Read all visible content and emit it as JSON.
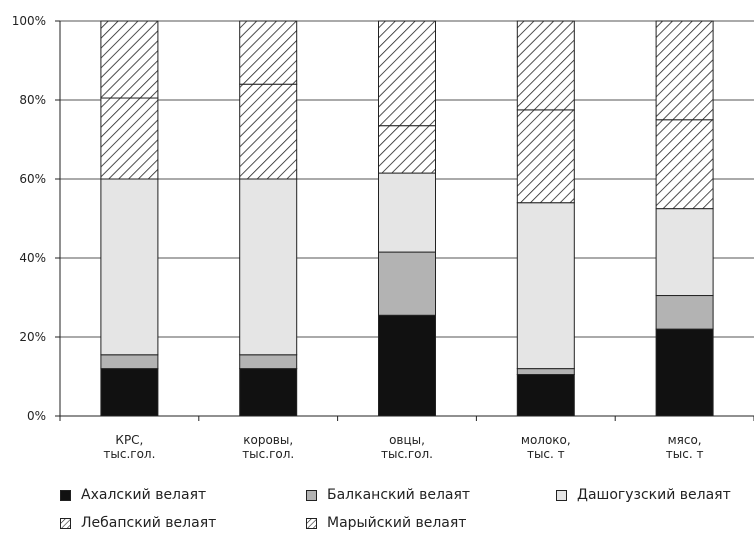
{
  "chart_data": {
    "type": "bar",
    "stacked": true,
    "normalized": true,
    "categories": [
      [
        "КРС,",
        "тыс.гол."
      ],
      [
        "коровы,",
        "тыс.гол."
      ],
      [
        "овцы,",
        "тыс.гол."
      ],
      [
        "молоко,",
        "тыс. т"
      ],
      [
        "мясо,",
        "тыс. т"
      ]
    ],
    "series": [
      {
        "name": "Ахалский велаят",
        "pattern": "solid",
        "color": "#111111",
        "values": [
          12,
          12,
          25.5,
          10.5,
          22
        ]
      },
      {
        "name": "Балканский велаят",
        "pattern": "solid",
        "color": "#b3b3b3",
        "values": [
          3.5,
          3.5,
          16,
          1.5,
          8.5
        ]
      },
      {
        "name": "Дашогузский велаят",
        "pattern": "solid",
        "color": "#e5e5e5",
        "values": [
          44.5,
          44.5,
          20,
          42,
          22
        ]
      },
      {
        "name": "Лебапский велаят",
        "pattern": "hatch",
        "color": "#222222",
        "values": [
          20.5,
          24,
          12,
          23.5,
          22.5
        ]
      },
      {
        "name": "Марыйский велаят",
        "pattern": "hatch",
        "color": "#222222",
        "values": [
          19.5,
          16,
          26.5,
          22.5,
          25
        ]
      }
    ],
    "yticks": [
      "0%",
      "20%",
      "40%",
      "60%",
      "80%",
      "100%"
    ],
    "ylim": [
      0,
      100
    ],
    "grid": true,
    "legend_position": "bottom"
  }
}
